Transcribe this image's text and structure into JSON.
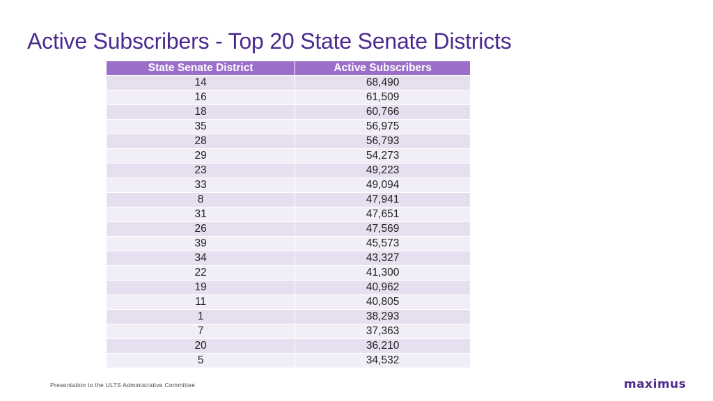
{
  "slide": {
    "title": "Active Subscribers - Top 20 State Senate Districts"
  },
  "table": {
    "headers": [
      "State Senate District",
      "Active Subscribers"
    ],
    "rows": [
      [
        "14",
        "68,490"
      ],
      [
        "16",
        "61,509"
      ],
      [
        "18",
        "60,766"
      ],
      [
        "35",
        "56,975"
      ],
      [
        "28",
        "56,793"
      ],
      [
        "29",
        "54,273"
      ],
      [
        "23",
        "49,223"
      ],
      [
        "33",
        "49,094"
      ],
      [
        "8",
        "47,941"
      ],
      [
        "31",
        "47,651"
      ],
      [
        "26",
        "47,569"
      ],
      [
        "39",
        "45,573"
      ],
      [
        "34",
        "43,327"
      ],
      [
        "22",
        "41,300"
      ],
      [
        "19",
        "40,962"
      ],
      [
        "11",
        "40,805"
      ],
      [
        "1",
        "38,293"
      ],
      [
        "7",
        "37,363"
      ],
      [
        "20",
        "36,210"
      ],
      [
        "5",
        "34,532"
      ]
    ]
  },
  "footer": {
    "text": "Presentation to the ULTS Administrative Committee",
    "logo_text": "maximus"
  },
  "colors": {
    "title": "#4b2a8e",
    "header_bg": "#9b6fc9",
    "row_odd": "#e6dff0",
    "row_even": "#f2eef7",
    "logo": "#4b2a8e"
  }
}
